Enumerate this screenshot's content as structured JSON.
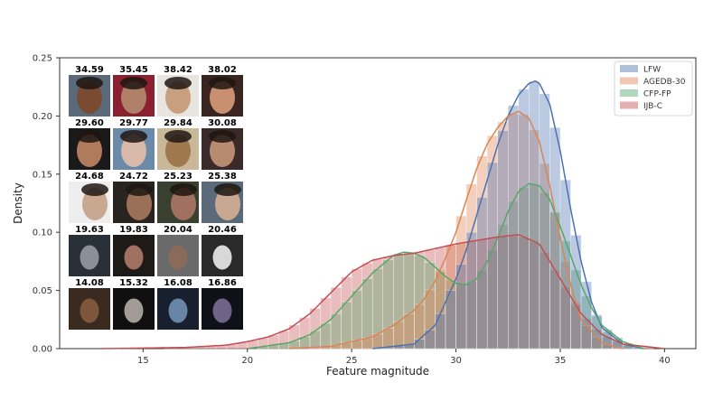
{
  "chart_data": {
    "type": "area",
    "title": "",
    "xlabel": "Feature magnitude",
    "ylabel": "Density",
    "xlim": [
      11,
      41.5
    ],
    "ylim": [
      0,
      0.25
    ],
    "xticks": [
      15,
      20,
      25,
      30,
      35,
      40
    ],
    "yticks": [
      0.0,
      0.05,
      0.1,
      0.15,
      0.2,
      0.25
    ],
    "ytick_labels": [
      "0.00",
      "0.05",
      "0.10",
      "0.15",
      "0.20",
      "0.25"
    ],
    "grid": false,
    "legend_position": "top-right",
    "histogram_bin_width": 0.5,
    "series": [
      {
        "name": "LFW",
        "color": "#4c72b0",
        "x": [
          26,
          28,
          29,
          30,
          30.5,
          31,
          31.5,
          32,
          32.5,
          33,
          33.5,
          33.8,
          34,
          34.5,
          35,
          35.5,
          36,
          36.5,
          37,
          38,
          39
        ],
        "density": [
          0.0,
          0.004,
          0.02,
          0.06,
          0.085,
          0.115,
          0.145,
          0.175,
          0.2,
          0.218,
          0.228,
          0.23,
          0.228,
          0.21,
          0.17,
          0.12,
          0.075,
          0.04,
          0.018,
          0.004,
          0.0
        ]
      },
      {
        "name": "AGEDB-30",
        "color": "#dd8452",
        "x": [
          22,
          24,
          26,
          27,
          28,
          28.5,
          29,
          29.5,
          30,
          30.5,
          31,
          31.5,
          32,
          32.5,
          33,
          33.5,
          34,
          34.5,
          35,
          35.5,
          36,
          37,
          38
        ],
        "density": [
          0.0,
          0.002,
          0.01,
          0.02,
          0.033,
          0.043,
          0.058,
          0.078,
          0.1,
          0.128,
          0.155,
          0.176,
          0.19,
          0.2,
          0.204,
          0.198,
          0.178,
          0.14,
          0.095,
          0.055,
          0.025,
          0.005,
          0.0
        ]
      },
      {
        "name": "CFP-FP",
        "color": "#55a868",
        "x": [
          20,
          22,
          23,
          24,
          25,
          26,
          27,
          27.5,
          28,
          28.5,
          29,
          29.5,
          30,
          30.5,
          31,
          31.5,
          32,
          32.5,
          33,
          33.5,
          34,
          34.5,
          35,
          35.5,
          36,
          36.5,
          37,
          38,
          39
        ],
        "density": [
          0.0,
          0.005,
          0.012,
          0.025,
          0.045,
          0.065,
          0.08,
          0.083,
          0.082,
          0.078,
          0.07,
          0.062,
          0.056,
          0.055,
          0.06,
          0.075,
          0.095,
          0.118,
          0.135,
          0.142,
          0.14,
          0.128,
          0.105,
          0.08,
          0.055,
          0.035,
          0.02,
          0.006,
          0.0
        ]
      },
      {
        "name": "IJB-C",
        "color": "#c44e52",
        "x": [
          13,
          17,
          19,
          20,
          21,
          22,
          23,
          24,
          25,
          26,
          27,
          28,
          29,
          30,
          31,
          32,
          33,
          34,
          35,
          36,
          37,
          38,
          40
        ],
        "density": [
          0.0,
          0.001,
          0.003,
          0.006,
          0.01,
          0.017,
          0.03,
          0.048,
          0.066,
          0.076,
          0.08,
          0.082,
          0.086,
          0.09,
          0.093,
          0.096,
          0.098,
          0.09,
          0.06,
          0.03,
          0.012,
          0.004,
          0.0
        ]
      }
    ]
  },
  "face_grid": {
    "rows": [
      [
        {
          "score": "34.59",
          "skin": "#7a4a32",
          "bg": "#5a6a7a"
        },
        {
          "score": "35.45",
          "skin": "#b08068",
          "bg": "#8a2030"
        },
        {
          "score": "38.42",
          "skin": "#c8a080",
          "bg": "#e8e4e0"
        },
        {
          "score": "38.02",
          "skin": "#c89070",
          "bg": "#3a2420"
        }
      ],
      [
        {
          "score": "29.60",
          "skin": "#b07a5c",
          "bg": "#1a1a1a"
        },
        {
          "score": "29.77",
          "skin": "#d8b8a8",
          "bg": "#6a8aa8"
        },
        {
          "score": "29.84",
          "skin": "#a07850",
          "bg": "#c8b898"
        },
        {
          "score": "30.08",
          "skin": "#b88a70",
          "bg": "#3a2a2a"
        }
      ],
      [
        {
          "score": "24.68",
          "skin": "#c8a890",
          "bg": "#eeeeee"
        },
        {
          "score": "24.72",
          "skin": "#9a7058",
          "bg": "#2a2420"
        },
        {
          "score": "25.23",
          "skin": "#a07060",
          "bg": "#3a4030"
        },
        {
          "score": "25.38",
          "skin": "#c8a890",
          "bg": "#5a6a7a"
        }
      ],
      [
        {
          "score": "19.63",
          "skin": "#8a9098",
          "bg": "#2a3038"
        },
        {
          "score": "19.83",
          "skin": "#a07060",
          "bg": "#1e1a18"
        },
        {
          "score": "20.04",
          "skin": "#8a6a58",
          "bg": "#6a6a6a"
        },
        {
          "score": "20.46",
          "skin": "#d8d8d8",
          "bg": "#2a2a2a"
        }
      ],
      [
        {
          "score": "14.08",
          "skin": "#9a6a48",
          "bg": "#3a2a20"
        },
        {
          "score": "15.32",
          "skin": "#e0d8d0",
          "bg": "#101010"
        },
        {
          "score": "16.08",
          "skin": "#8ab0d8",
          "bg": "#182030"
        },
        {
          "score": "16.86",
          "skin": "#9a88b8",
          "bg": "#101018"
        }
      ]
    ]
  }
}
